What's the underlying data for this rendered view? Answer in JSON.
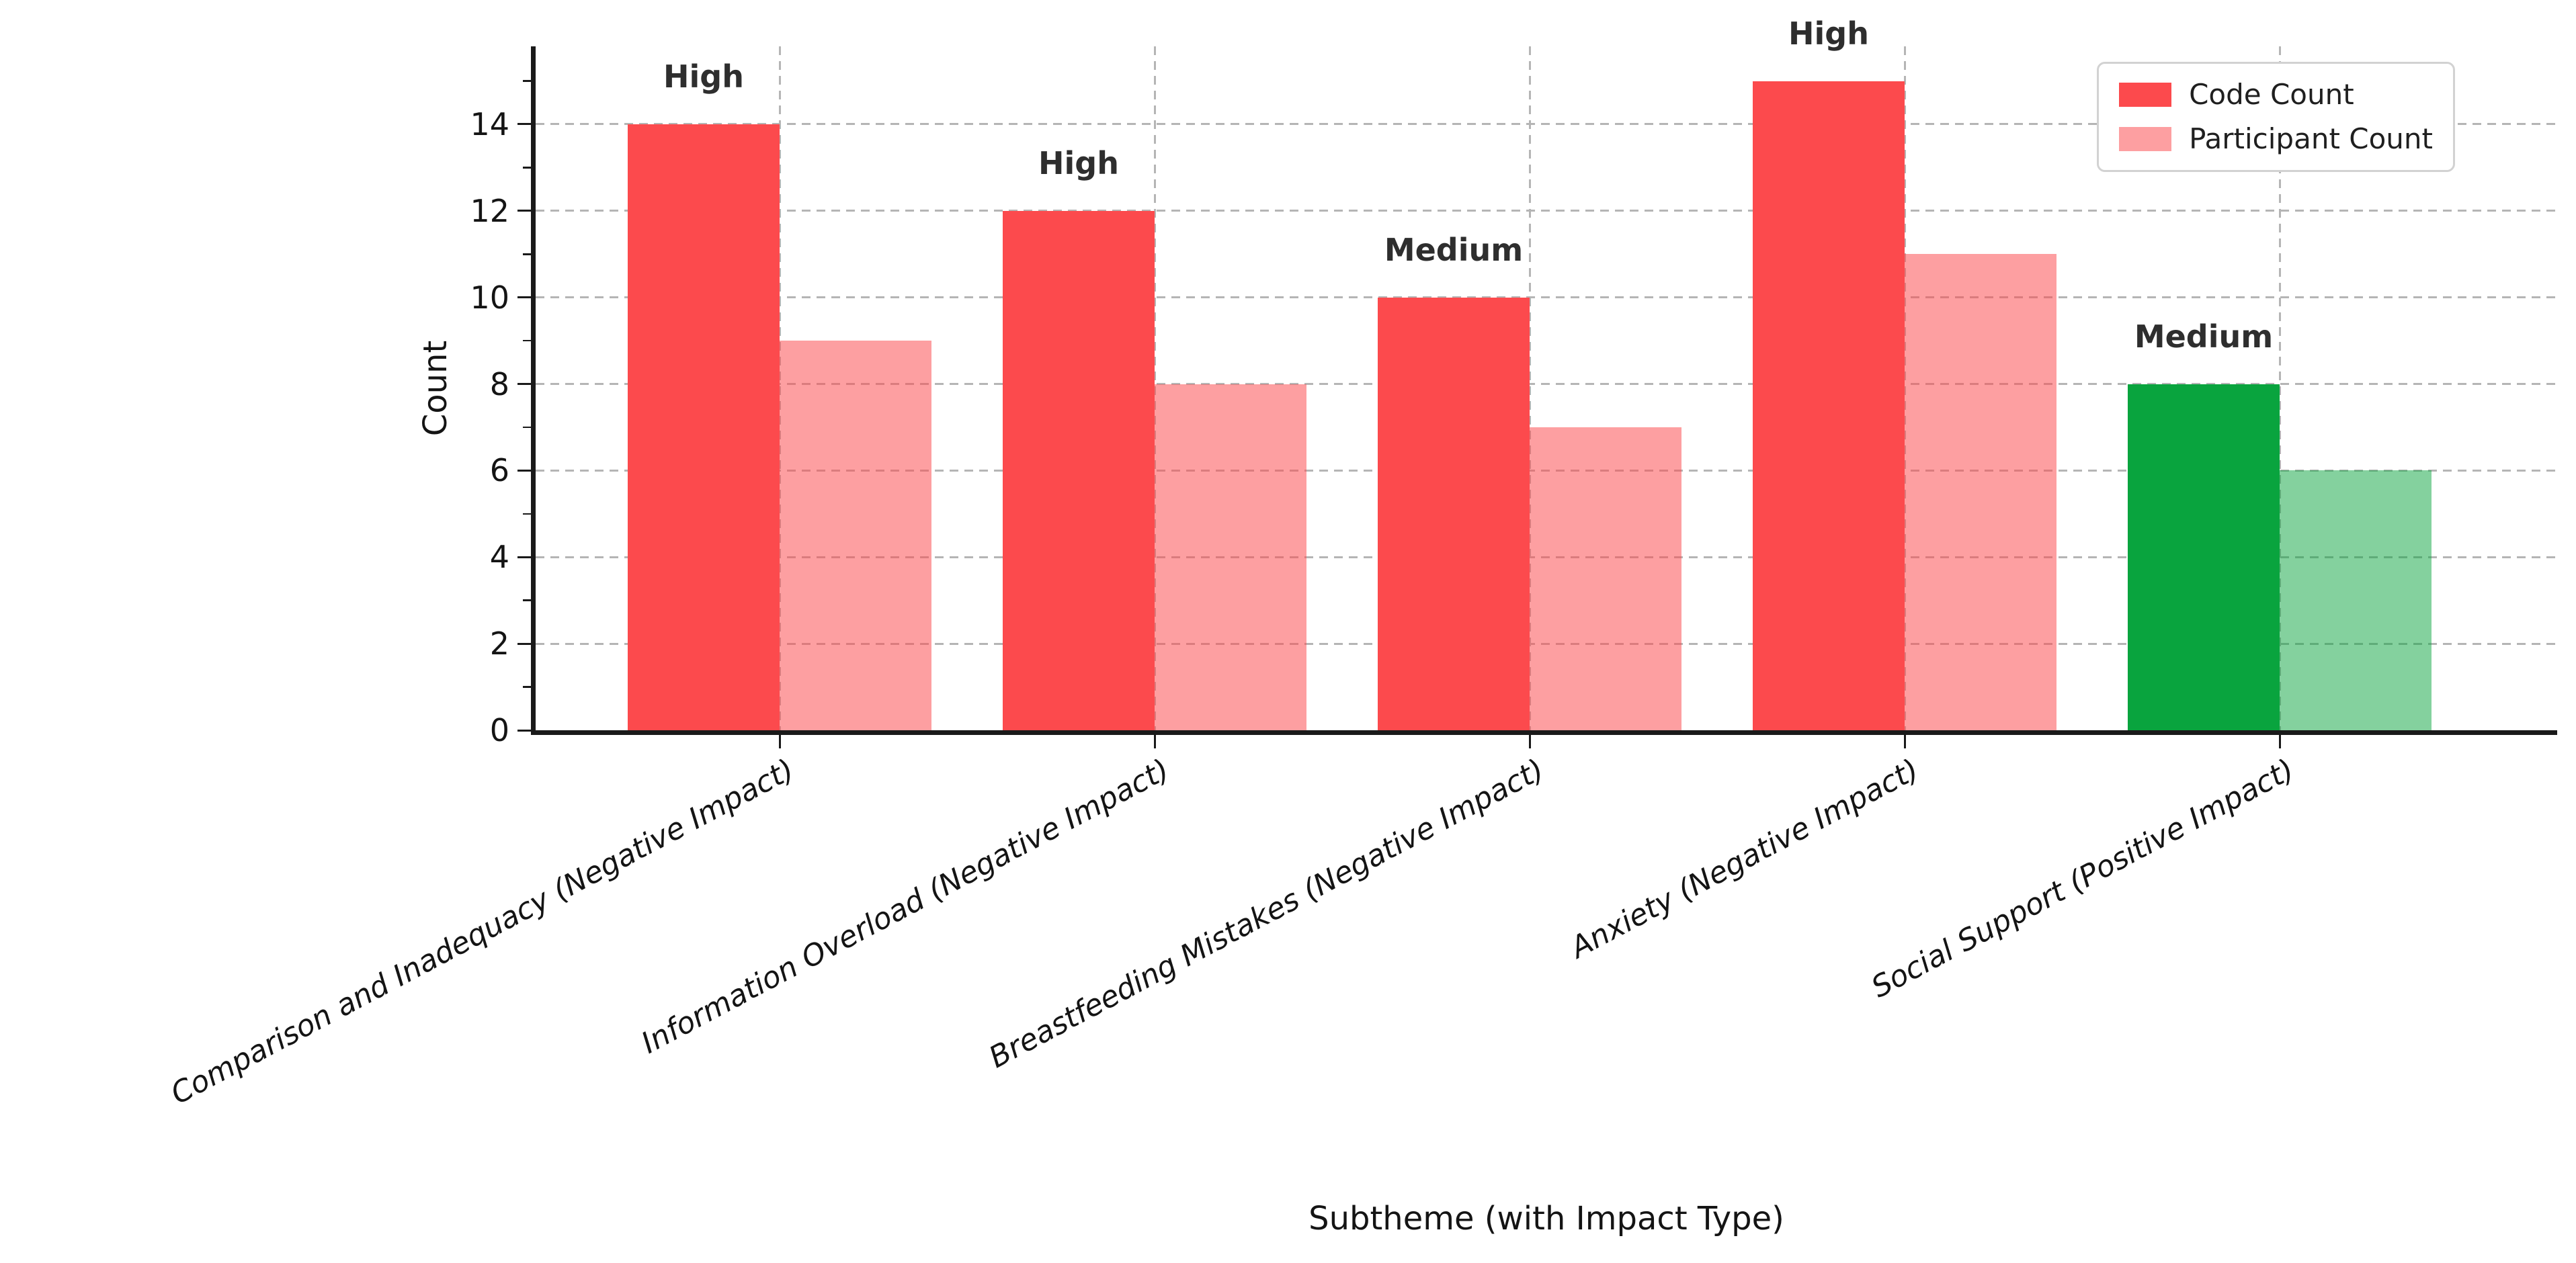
{
  "chart_data": {
    "type": "bar",
    "title": "",
    "xlabel": "Subtheme (with Impact Type)",
    "ylabel": "Count",
    "categories": [
      "Comparison and Inadequacy (Negative Impact)",
      "Information Overload (Negative Impact)",
      "Breastfeeding Mistakes (Negative Impact)",
      "Anxiety (Negative Impact)",
      "Social Support (Positive Impact)"
    ],
    "series": [
      {
        "name": "Code Count",
        "values": [
          14,
          12,
          10,
          15,
          8
        ]
      },
      {
        "name": "Participant Count",
        "values": [
          9,
          8,
          7,
          11,
          6
        ]
      }
    ],
    "bar_annotations": [
      "High",
      "High",
      "Medium",
      "High",
      "Medium"
    ],
    "category_colors": [
      {
        "code": "#fc4a4d",
        "participant": "rgba(252,74,77,0.53)"
      },
      {
        "code": "#fc4a4d",
        "participant": "rgba(252,74,77,0.53)"
      },
      {
        "code": "#fc4a4d",
        "participant": "rgba(252,74,77,0.53)"
      },
      {
        "code": "#fc4a4d",
        "participant": "rgba(252,74,77,0.53)"
      },
      {
        "code": "#09a43e",
        "participant": "rgba(9,164,62,0.50)"
      }
    ],
    "legend_swatch_colors": [
      "#fc4a4d",
      "rgba(252,74,77,0.53)"
    ],
    "yticks": [
      0,
      2,
      4,
      6,
      8,
      10,
      12,
      14
    ],
    "yticks_minor": [
      1,
      3,
      5,
      7,
      9,
      11,
      13,
      15
    ],
    "ylim": [
      0,
      15.8
    ],
    "grid": "dashed gray, horizontal and vertical",
    "grid_color": "#b5b5b5",
    "axis_color": "#1a1a1a",
    "annotation_color": "#2e2e2e",
    "legend_position": "upper right"
  }
}
